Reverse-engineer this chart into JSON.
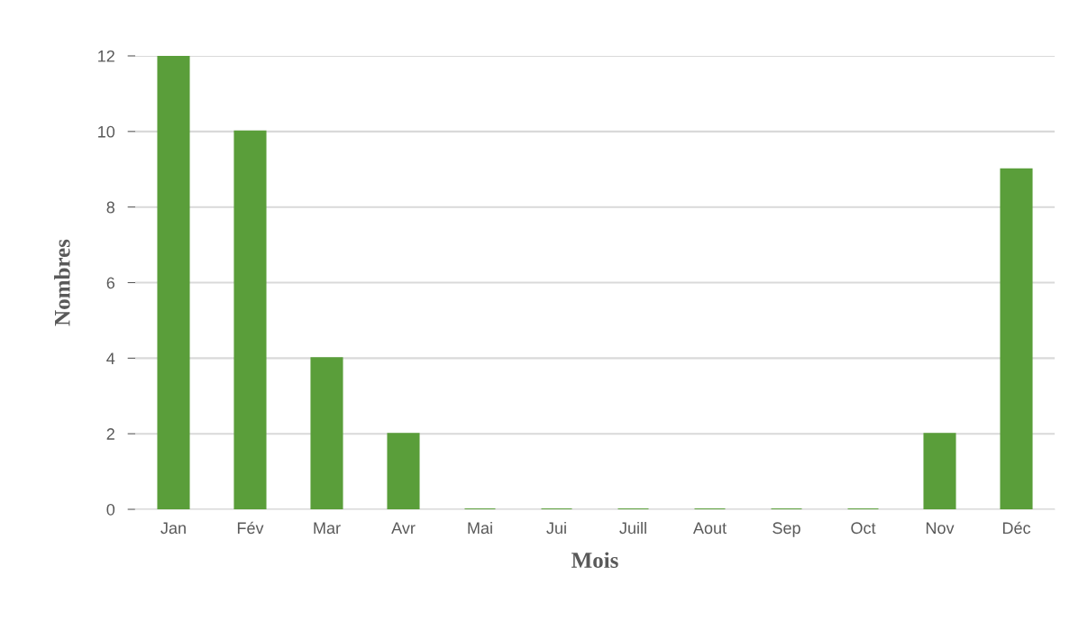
{
  "chart_data": {
    "type": "bar",
    "xlabel": "Mois",
    "ylabel": "Nombres",
    "categories": [
      "Jan",
      "Fév",
      "Mar",
      "Avr",
      "Mai",
      "Jui",
      "Juill",
      "Aout",
      "Sep",
      "Oct",
      "Nov",
      "Déc"
    ],
    "values": [
      12,
      10,
      4,
      2,
      0,
      0,
      0,
      0,
      0,
      0,
      2,
      9
    ],
    "color": "#5a9e3a",
    "ylim": [
      0,
      12
    ],
    "yticks": [
      0,
      2,
      4,
      6,
      8,
      10,
      12
    ],
    "grid": "y"
  }
}
